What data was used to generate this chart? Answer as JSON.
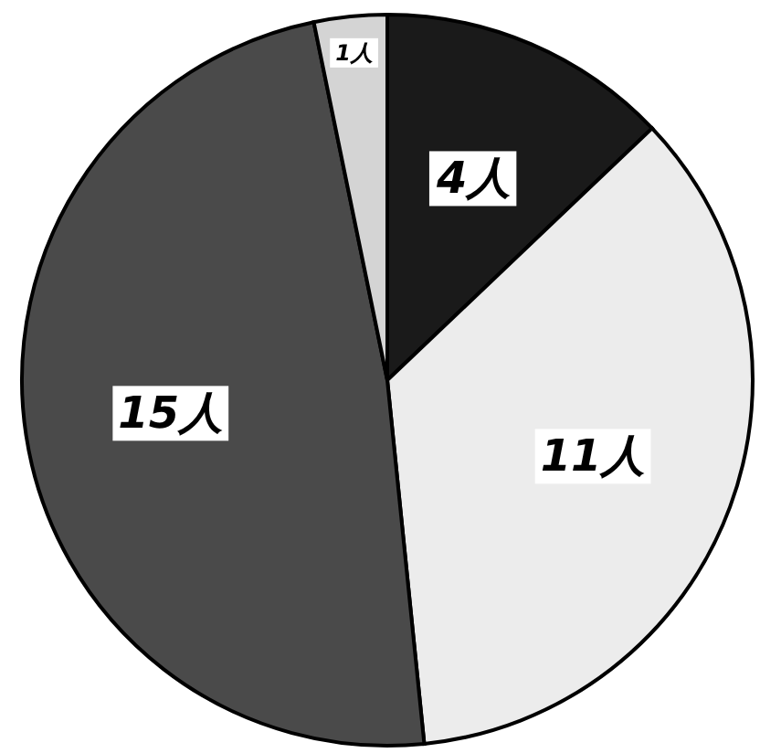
{
  "chart_data": {
    "type": "pie",
    "categories": [
      null,
      null,
      null,
      null
    ],
    "values": [
      4,
      11,
      15,
      1
    ],
    "value_labels": [
      "4人",
      "11人",
      "15人",
      "1人"
    ],
    "colors": [
      "#1a1a1a",
      "#ececec",
      "#4a4a4a",
      "#d4d4d4"
    ]
  }
}
